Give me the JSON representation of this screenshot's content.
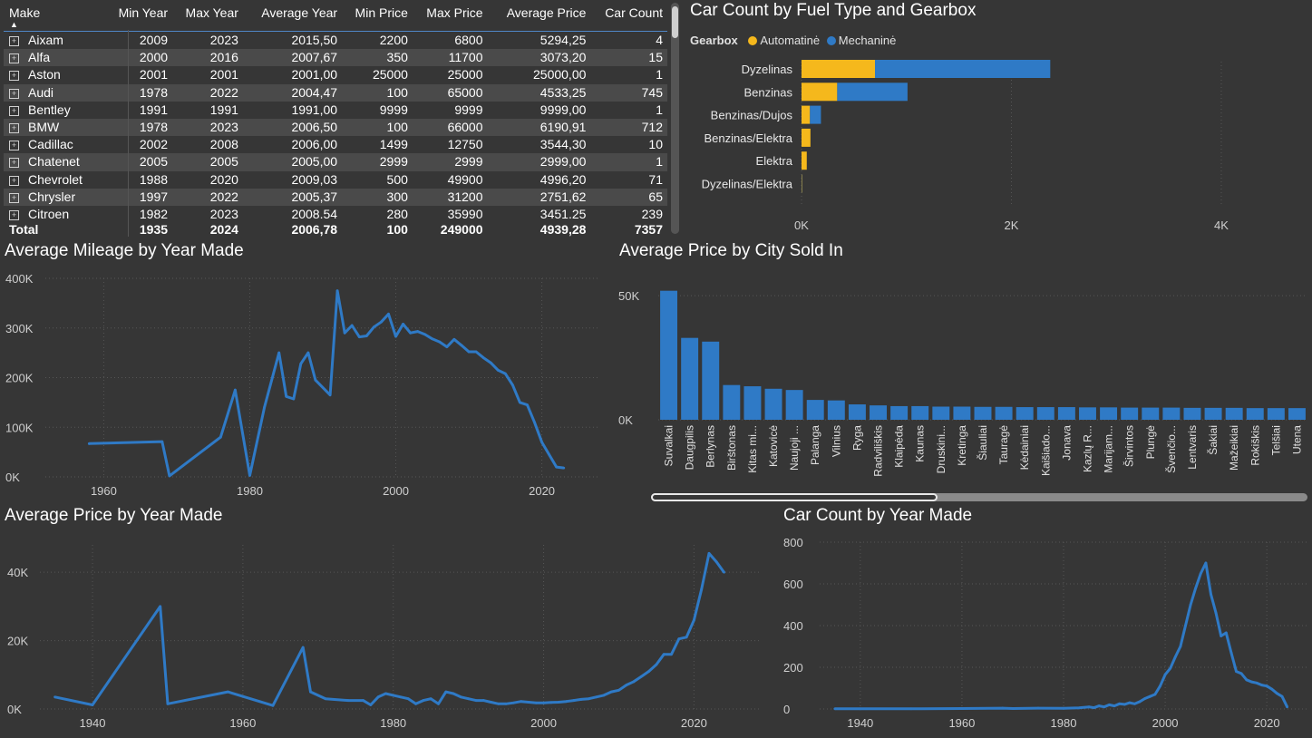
{
  "table": {
    "headers": [
      "Make",
      "Min Year",
      "Max Year",
      "Average Year",
      "Min Price",
      "Max Price",
      "Average Price",
      "Car Count"
    ],
    "rows": [
      [
        "Aixam",
        "2009",
        "2023",
        "2015,50",
        "2200",
        "6800",
        "5294,25",
        "4"
      ],
      [
        "Alfa",
        "2000",
        "2016",
        "2007,67",
        "350",
        "11700",
        "3073,20",
        "15"
      ],
      [
        "Aston",
        "2001",
        "2001",
        "2001,00",
        "25000",
        "25000",
        "25000,00",
        "1"
      ],
      [
        "Audi",
        "1978",
        "2022",
        "2004,47",
        "100",
        "65000",
        "4533,25",
        "745"
      ],
      [
        "Bentley",
        "1991",
        "1991",
        "1991,00",
        "9999",
        "9999",
        "9999,00",
        "1"
      ],
      [
        "BMW",
        "1978",
        "2023",
        "2006,50",
        "100",
        "66000",
        "6190,91",
        "712"
      ],
      [
        "Cadillac",
        "2002",
        "2008",
        "2006,00",
        "1499",
        "12750",
        "3544,30",
        "10"
      ],
      [
        "Chatenet",
        "2005",
        "2005",
        "2005,00",
        "2999",
        "2999",
        "2999,00",
        "1"
      ],
      [
        "Chevrolet",
        "1988",
        "2020",
        "2009,03",
        "500",
        "49900",
        "4996,20",
        "71"
      ],
      [
        "Chrysler",
        "1997",
        "2022",
        "2005,37",
        "300",
        "31200",
        "2751,62",
        "65"
      ],
      [
        "Citroen",
        "1982",
        "2023",
        "2008.54",
        "280",
        "35990",
        "3451.25",
        "239"
      ]
    ],
    "total": [
      "Total",
      "1935",
      "2024",
      "2006,78",
      "100",
      "249000",
      "4939,28",
      "7357"
    ]
  },
  "colors": {
    "automatic": "#f5b81c",
    "manual": "#2f7ac6",
    "background": "#363636"
  },
  "chart_data": [
    {
      "type": "bar",
      "orientation": "horizontal",
      "stacked": true,
      "title": "Car Count by Fuel Type and Gearbox",
      "legend_title": "Gearbox",
      "legend_position": "top-left",
      "categories": [
        "Dyzelinas",
        "Benzinas",
        "Benzinas/Dujos",
        "Benzinas/Elektra",
        "Elektra",
        "Dyzelinas/Elektra"
      ],
      "series": [
        {
          "name": "Automatinė",
          "values": [
            700,
            340,
            80,
            85,
            50,
            4
          ]
        },
        {
          "name": "Mechaninė",
          "values": [
            1670,
            670,
            105,
            0,
            0,
            2
          ]
        }
      ],
      "xlim": [
        0,
        4700
      ],
      "xticks": [
        {
          "v": 0,
          "label": "0K"
        },
        {
          "v": 2000,
          "label": "2K"
        },
        {
          "v": 4000,
          "label": "4K"
        }
      ]
    },
    {
      "type": "line",
      "title": "Average Mileage by Year Made",
      "x": [
        1958,
        1968,
        1969,
        1976,
        1978,
        1980,
        1982,
        1984,
        1985,
        1986,
        1987,
        1988,
        1989,
        1991,
        1992,
        1993,
        1994,
        1995,
        1996,
        1997,
        1998,
        1999,
        2000,
        2001,
        2002,
        2003,
        2004,
        2005,
        2006,
        2007,
        2008,
        2009,
        2010,
        2011,
        2012,
        2013,
        2014,
        2015,
        2016,
        2017,
        2018,
        2019,
        2020,
        2021,
        2022,
        2023
      ],
      "y": [
        67000,
        71000,
        2000,
        80000,
        175000,
        3000,
        140000,
        250000,
        162000,
        157000,
        228000,
        250000,
        195000,
        165000,
        375000,
        290000,
        305000,
        282000,
        284000,
        302000,
        312000,
        328000,
        283000,
        308000,
        290000,
        293000,
        287000,
        278000,
        272000,
        262000,
        277000,
        265000,
        252000,
        252000,
        240000,
        230000,
        215000,
        208000,
        185000,
        150000,
        145000,
        110000,
        70000,
        45000,
        20000,
        18000
      ],
      "xlim": [
        1952,
        2028
      ],
      "ylim": [
        0,
        400000
      ],
      "xticks": [
        {
          "v": 1960,
          "label": "1960"
        },
        {
          "v": 1980,
          "label": "1980"
        },
        {
          "v": 2000,
          "label": "2000"
        },
        {
          "v": 2020,
          "label": "2020"
        }
      ],
      "yticks": [
        {
          "v": 0,
          "label": "0K"
        },
        {
          "v": 100000,
          "label": "100K"
        },
        {
          "v": 200000,
          "label": "200K"
        },
        {
          "v": 300000,
          "label": "300K"
        },
        {
          "v": 400000,
          "label": "400K"
        }
      ]
    },
    {
      "type": "bar",
      "title": "Average Price by City Sold In",
      "categories": [
        "Suvalkai",
        "Daugpilis",
        "Berlynas",
        "Birštonas",
        "Kitas mi...",
        "Katovicė",
        "Naujoji ...",
        "Palanga",
        "Vilnius",
        "Ryga",
        "Radviliškis",
        "Klaipėda",
        "Kaunas",
        "Druskini...",
        "Kretinga",
        "Šiauliai",
        "Tauragė",
        "Kėdainiai",
        "Kaišiado...",
        "Jonava",
        "Kazlų R...",
        "Marijam...",
        "Širvintos",
        "Plungė",
        "Švenčio...",
        "Lentvaris",
        "Šakiai",
        "Mažeikiai",
        "Rokiškis",
        "Telšiai",
        "Utena"
      ],
      "values": [
        52000,
        33000,
        31500,
        14000,
        13500,
        12500,
        12000,
        8000,
        7800,
        6200,
        5800,
        5500,
        5500,
        5300,
        5300,
        5200,
        5200,
        5100,
        5100,
        5100,
        5000,
        5000,
        4900,
        4900,
        4900,
        4800,
        4800,
        4800,
        4700,
        4700,
        4700
      ],
      "ylim": [
        0,
        57000
      ],
      "yticks": [
        {
          "v": 0,
          "label": "0K"
        },
        {
          "v": 50000,
          "label": "50K"
        }
      ]
    },
    {
      "type": "line",
      "title": "Average Price by Year Made",
      "x": [
        1935,
        1940,
        1949,
        1950,
        1958,
        1964,
        1968,
        1969,
        1971,
        1974,
        1976,
        1977,
        1978,
        1979,
        1980,
        1981,
        1982,
        1983,
        1984,
        1985,
        1986,
        1987,
        1988,
        1989,
        1990,
        1991,
        1992,
        1993,
        1994,
        1995,
        1996,
        1997,
        1998,
        1999,
        2000,
        2001,
        2002,
        2003,
        2004,
        2005,
        2006,
        2007,
        2008,
        2009,
        2010,
        2011,
        2012,
        2013,
        2014,
        2015,
        2016,
        2017,
        2018,
        2019,
        2020,
        2021,
        2022,
        2023,
        2024
      ],
      "y": [
        3500,
        1200,
        30000,
        1500,
        5000,
        1000,
        18000,
        5000,
        3000,
        2500,
        2500,
        1200,
        3500,
        4500,
        4000,
        3500,
        3000,
        1500,
        2500,
        3000,
        1500,
        5000,
        4500,
        3500,
        3000,
        2500,
        2500,
        2000,
        1500,
        1500,
        1800,
        2200,
        2000,
        1800,
        1800,
        1900,
        2000,
        2200,
        2500,
        2800,
        3000,
        3500,
        4000,
        5000,
        5500,
        7000,
        8000,
        9500,
        11000,
        13000,
        16000,
        16000,
        20500,
        21000,
        26000,
        35000,
        45500,
        43000,
        40000
      ],
      "xlim": [
        1933,
        2029
      ],
      "ylim": [
        0,
        48000
      ],
      "xticks": [
        {
          "v": 1940,
          "label": "1940"
        },
        {
          "v": 1960,
          "label": "1960"
        },
        {
          "v": 1980,
          "label": "1980"
        },
        {
          "v": 2000,
          "label": "2000"
        },
        {
          "v": 2020,
          "label": "2020"
        }
      ],
      "yticks": [
        {
          "v": 0,
          "label": "0K"
        },
        {
          "v": 20000,
          "label": "20K"
        },
        {
          "v": 40000,
          "label": "40K"
        }
      ]
    },
    {
      "type": "line",
      "title": "Car Count by Year Made",
      "x": [
        1935,
        1940,
        1950,
        1960,
        1968,
        1970,
        1975,
        1980,
        1983,
        1985,
        1986,
        1987,
        1988,
        1989,
        1990,
        1991,
        1992,
        1993,
        1994,
        1995,
        1996,
        1997,
        1998,
        1999,
        2000,
        2001,
        2002,
        2003,
        2004,
        2005,
        2006,
        2007,
        2008,
        2009,
        2010,
        2011,
        2012,
        2013,
        2014,
        2015,
        2016,
        2017,
        2018,
        2019,
        2020,
        2021,
        2022,
        2023,
        2024
      ],
      "y": [
        1,
        1,
        1,
        2,
        4,
        2,
        4,
        3,
        5,
        10,
        6,
        15,
        10,
        20,
        15,
        25,
        22,
        30,
        25,
        35,
        50,
        60,
        70,
        110,
        165,
        195,
        250,
        300,
        400,
        500,
        580,
        650,
        700,
        550,
        460,
        350,
        365,
        270,
        180,
        170,
        140,
        130,
        125,
        115,
        110,
        95,
        75,
        60,
        10
      ],
      "xlim": [
        1932,
        2028
      ],
      "ylim": [
        0,
        800
      ],
      "xticks": [
        {
          "v": 1940,
          "label": "1940"
        },
        {
          "v": 1960,
          "label": "1960"
        },
        {
          "v": 1980,
          "label": "1980"
        },
        {
          "v": 2000,
          "label": "2000"
        },
        {
          "v": 2020,
          "label": "2020"
        }
      ],
      "yticks": [
        {
          "v": 0,
          "label": "0"
        },
        {
          "v": 200,
          "label": "200"
        },
        {
          "v": 400,
          "label": "400"
        },
        {
          "v": 600,
          "label": "600"
        },
        {
          "v": 800,
          "label": "800"
        }
      ]
    }
  ]
}
